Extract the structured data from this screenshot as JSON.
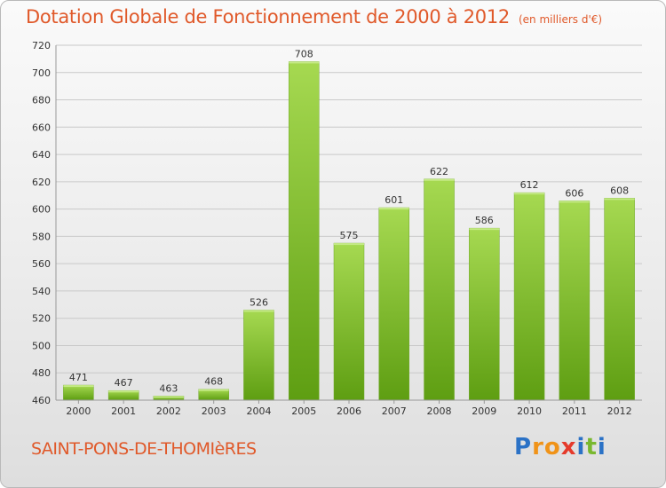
{
  "header": {
    "title": "Dotation Globale de Fonctionnement de 2000 à 2012",
    "unit": "(en milliers d'€)"
  },
  "footer": {
    "commune": "SAINT-PONS-DE-THOMIèRES",
    "logo": [
      "P",
      "r",
      "o",
      "x",
      "i",
      "t",
      "i"
    ]
  },
  "colors": {
    "title": "#e0592a",
    "bar_light": "#a6d951",
    "bar_dark": "#5e9e12",
    "logo": [
      "#2b72c6",
      "#f09318",
      "#f09318",
      "#e53a2b",
      "#2b72c6",
      "#79b82f",
      "#2b72c6"
    ]
  },
  "chart_data": {
    "type": "bar",
    "categories": [
      "2000",
      "2001",
      "2002",
      "2003",
      "2004",
      "2005",
      "2006",
      "2007",
      "2008",
      "2009",
      "2010",
      "2011",
      "2012"
    ],
    "values": [
      471,
      467,
      463,
      468,
      526,
      708,
      575,
      601,
      622,
      586,
      612,
      606,
      608
    ],
    "title": "Dotation Globale de Fonctionnement de 2000 à 2012",
    "xlabel": "",
    "ylabel": "",
    "ylim": [
      460,
      720
    ],
    "yticks": [
      460,
      480,
      500,
      520,
      540,
      560,
      580,
      600,
      620,
      640,
      660,
      680,
      700,
      720
    ],
    "grid": true,
    "data_labels": true
  }
}
